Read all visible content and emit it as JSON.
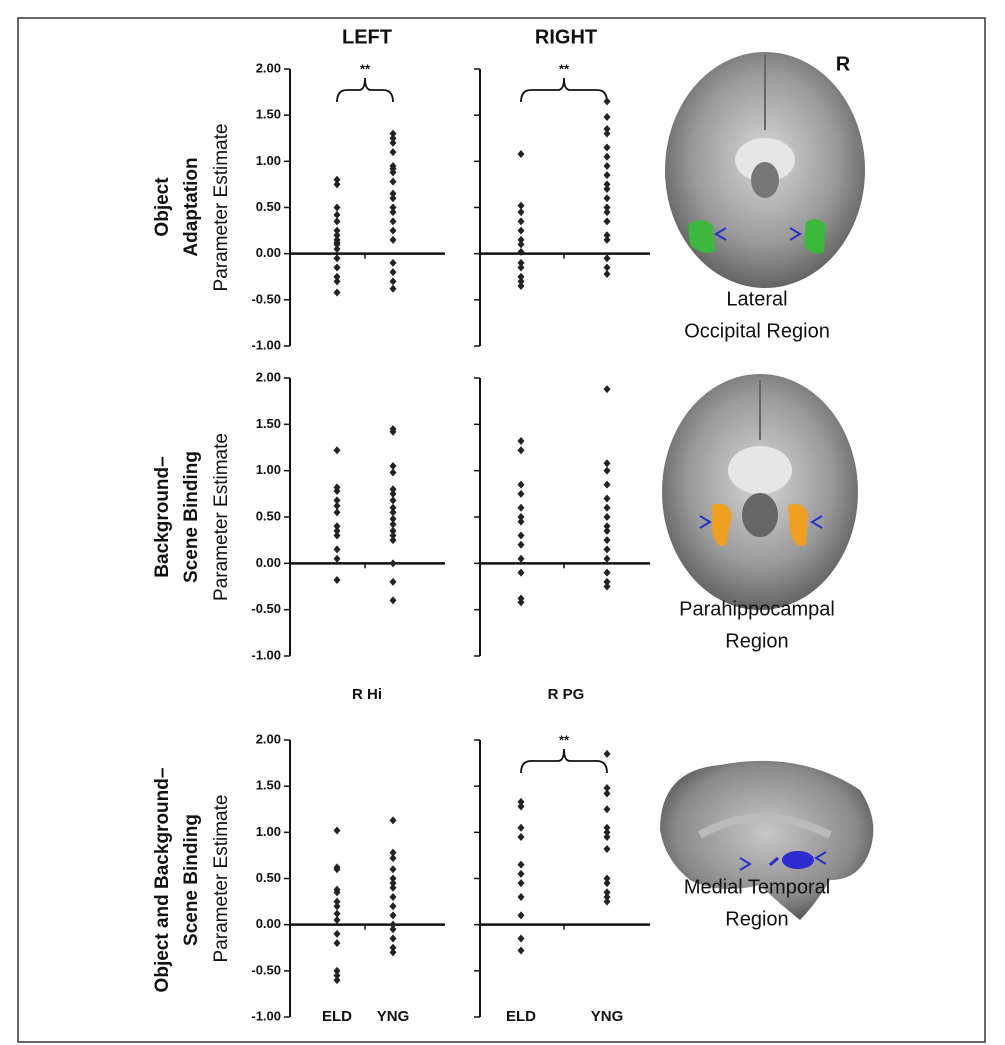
{
  "hemisphere_label": "R",
  "rows": [
    {
      "label_lines": [
        "Object",
        "Adaptation"
      ]
    },
    {
      "label_lines": [
        "Background–",
        "Scene Binding"
      ]
    },
    {
      "label_lines": [
        "Object and Background–",
        "Scene Binding"
      ]
    }
  ],
  "regions": [
    {
      "lines": [
        "Lateral",
        "Occipital Region"
      ]
    },
    {
      "lines": [
        "Parahippocampal",
        "Region"
      ]
    },
    {
      "lines": [
        "Medial Temporal",
        "Region"
      ]
    }
  ],
  "chart_data": [
    {
      "type": "strip",
      "title": "LEFT",
      "significance": "**",
      "ylabel": "Parameter Estimate",
      "show_tick_labels": true,
      "color": "#222",
      "categories": [
        null,
        null
      ],
      "values": [
        [
          0.8,
          0.75,
          0.5,
          0.42,
          0.35,
          0.25,
          0.2,
          0.15,
          0.12,
          0.1,
          0.05,
          -0.05,
          -0.15,
          -0.25,
          -0.3,
          -0.42
        ],
        [
          1.3,
          1.25,
          1.2,
          1.1,
          0.95,
          0.92,
          0.88,
          0.78,
          0.65,
          0.6,
          0.5,
          0.45,
          0.35,
          0.25,
          0.15,
          -0.1,
          -0.2,
          -0.3,
          -0.38
        ]
      ],
      "ylim": [
        -1,
        2
      ],
      "yticks": [
        {
          "value": -1,
          "label": "-1.00"
        },
        {
          "value": -0.5,
          "label": "-0.50"
        },
        {
          "value": 0,
          "label": "0.00"
        },
        {
          "value": 0.5,
          "label": "0.50"
        },
        {
          "value": 1,
          "label": "1.00"
        },
        {
          "value": 1.5,
          "label": "1.50"
        },
        {
          "value": 2,
          "label": "2.00"
        }
      ]
    },
    {
      "type": "strip",
      "title": "RIGHT",
      "significance": "**",
      "show_tick_labels": false,
      "color": "#222",
      "categories": [
        null,
        null
      ],
      "values": [
        [
          1.08,
          0.52,
          0.45,
          0.35,
          0.25,
          0.15,
          0.1,
          0.02,
          -0.1,
          -0.15,
          -0.25,
          -0.3,
          -0.35
        ],
        [
          1.65,
          1.48,
          1.35,
          1.3,
          1.15,
          1.05,
          0.95,
          0.85,
          0.75,
          0.7,
          0.6,
          0.5,
          0.45,
          0.35,
          0.2,
          0.15,
          -0.05,
          -0.15,
          -0.22
        ]
      ],
      "ylim": [
        -1,
        2
      ],
      "yticks": [
        -1,
        -0.5,
        0,
        0.5,
        1,
        1.5,
        2
      ]
    },
    {
      "type": "strip",
      "ylabel": "Parameter Estimate",
      "show_tick_labels": true,
      "color": "#222",
      "categories": [
        null,
        null
      ],
      "values": [
        [
          1.22,
          0.82,
          0.78,
          0.68,
          0.62,
          0.55,
          0.4,
          0.35,
          0.3,
          0.15,
          0.05,
          -0.18
        ],
        [
          1.45,
          1.42,
          1.05,
          0.98,
          0.8,
          0.75,
          0.68,
          0.6,
          0.55,
          0.48,
          0.42,
          0.35,
          0.3,
          0.25,
          0,
          -0.2,
          -0.4
        ]
      ],
      "ylim": [
        -1,
        2
      ],
      "yticks": [
        {
          "value": -1,
          "label": "-1.00"
        },
        {
          "value": -0.5,
          "label": "-0.50"
        },
        {
          "value": 0,
          "label": "0.00"
        },
        {
          "value": 0.5,
          "label": "0.50"
        },
        {
          "value": 1,
          "label": "1.00"
        },
        {
          "value": 1.5,
          "label": "1.50"
        },
        {
          "value": 2,
          "label": "2.00"
        }
      ]
    },
    {
      "type": "strip",
      "show_tick_labels": false,
      "color": "#222",
      "categories": [
        null,
        null
      ],
      "values": [
        [
          1.32,
          1.22,
          0.85,
          0.75,
          0.6,
          0.5,
          0.45,
          0.3,
          0.2,
          0.05,
          -0.1,
          -0.38,
          -0.42
        ],
        [
          1.88,
          1.08,
          1,
          0.85,
          0.7,
          0.6,
          0.5,
          0.4,
          0.35,
          0.25,
          0.15,
          0.05,
          -0.1,
          -0.2,
          -0.25
        ]
      ],
      "ylim": [
        -1,
        2
      ],
      "yticks": [
        -1,
        -0.5,
        0,
        0.5,
        1,
        1.5,
        2
      ]
    },
    {
      "type": "strip",
      "title": "R Hi",
      "ylabel": "Parameter Estimate",
      "show_tick_labels": true,
      "color": "#222",
      "categories": [
        "ELD",
        "YNG"
      ],
      "values": [
        [
          1.02,
          0.62,
          0.6,
          0.38,
          0.35,
          0.25,
          0.2,
          0.12,
          0.05,
          -0.1,
          -0.2,
          -0.5,
          -0.55,
          -0.6
        ],
        [
          1.13,
          0.78,
          0.72,
          0.6,
          0.5,
          0.45,
          0.4,
          0.3,
          0.2,
          0.1,
          0,
          -0.05,
          -0.15,
          -0.25,
          -0.3
        ]
      ],
      "ylim": [
        -1,
        2
      ],
      "yticks": [
        {
          "value": -1,
          "label": "-1.00"
        },
        {
          "value": -0.5,
          "label": "-0.50"
        },
        {
          "value": 0,
          "label": "0.00"
        },
        {
          "value": 0.5,
          "label": "0.50"
        },
        {
          "value": 1,
          "label": "1.00"
        },
        {
          "value": 1.5,
          "label": "1.50"
        },
        {
          "value": 2,
          "label": "2.00"
        }
      ]
    },
    {
      "type": "strip",
      "title": "R PG",
      "significance": "**",
      "show_tick_labels": false,
      "color": "#222",
      "categories": [
        "ELD",
        "YNG"
      ],
      "values": [
        [
          1.33,
          1.28,
          1.05,
          0.95,
          0.65,
          0.55,
          0.45,
          0.3,
          0.1,
          -0.15,
          -0.28
        ],
        [
          1.85,
          1.48,
          1.42,
          1.25,
          1.05,
          1,
          0.95,
          0.82,
          0.5,
          0.45,
          0.35,
          0.3,
          0.25
        ]
      ],
      "ylim": [
        -1,
        2
      ],
      "yticks": [
        -1,
        -0.5,
        0,
        0.5,
        1,
        1.5,
        2
      ]
    }
  ]
}
